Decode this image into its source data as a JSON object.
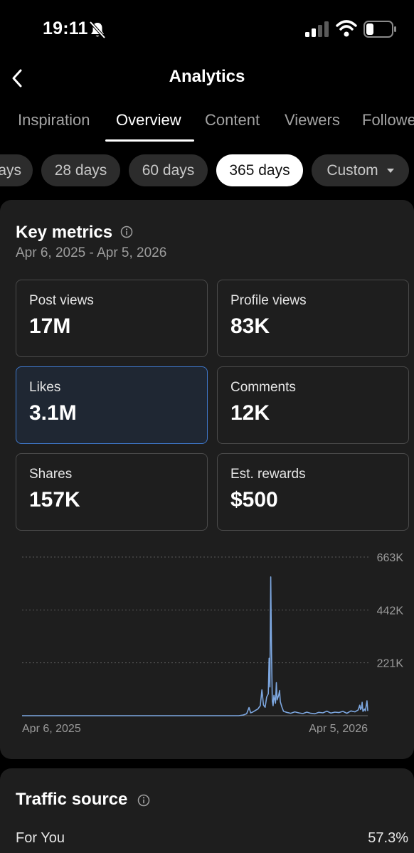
{
  "status_bar": {
    "time": "19:11"
  },
  "header": {
    "title": "Analytics"
  },
  "tabs": [
    "Inspiration",
    "Overview",
    "Content",
    "Viewers",
    "Followe"
  ],
  "chips": [
    "ays",
    "28 days",
    "60 days",
    "365 days",
    "Custom"
  ],
  "key_metrics": {
    "title": "Key metrics",
    "date_range": "Apr 6, 2025 - Apr 5, 2026",
    "metrics": [
      {
        "label": "Post views",
        "value": "17M"
      },
      {
        "label": "Profile views",
        "value": "83K"
      },
      {
        "label": "Likes",
        "value": "3.1M"
      },
      {
        "label": "Comments",
        "value": "12K"
      },
      {
        "label": "Shares",
        "value": "157K"
      },
      {
        "label": "Est. rewards",
        "value": "$500"
      }
    ]
  },
  "chart_data": {
    "type": "line",
    "x_start_label": "Apr 6, 2025",
    "x_end_label": "Apr 5, 2026",
    "y_ticks": [
      {
        "value": 221000,
        "label": "221K"
      },
      {
        "value": 442000,
        "label": "442K"
      },
      {
        "value": 663000,
        "label": "663K"
      }
    ],
    "ylim": [
      0,
      663000
    ],
    "grid": true,
    "color": "#7da7e0",
    "points": [
      [
        0,
        0
      ],
      [
        270,
        0
      ],
      [
        276,
        3000
      ],
      [
        280,
        8000
      ],
      [
        283,
        34000
      ],
      [
        285,
        12000
      ],
      [
        288,
        16000
      ],
      [
        291,
        22000
      ],
      [
        294,
        28000
      ],
      [
        297,
        42000
      ],
      [
        299,
        108000
      ],
      [
        301,
        45000
      ],
      [
        303,
        35000
      ],
      [
        305,
        78000
      ],
      [
        307,
        92000
      ],
      [
        308,
        240000
      ],
      [
        309,
        120000
      ],
      [
        310,
        580000
      ],
      [
        311,
        260000
      ],
      [
        312,
        62000
      ],
      [
        313,
        42000
      ],
      [
        314,
        85000
      ],
      [
        316,
        52000
      ],
      [
        317,
        138000
      ],
      [
        318,
        66000
      ],
      [
        320,
        86000
      ],
      [
        321,
        105000
      ],
      [
        322,
        58000
      ],
      [
        324,
        36000
      ],
      [
        326,
        18000
      ],
      [
        330,
        14000
      ],
      [
        335,
        10000
      ],
      [
        340,
        16000
      ],
      [
        345,
        12000
      ],
      [
        350,
        9000
      ],
      [
        355,
        15000
      ],
      [
        360,
        10000
      ],
      [
        365,
        8000
      ],
      [
        370,
        14000
      ],
      [
        375,
        12000
      ],
      [
        380,
        19000
      ],
      [
        385,
        11000
      ],
      [
        390,
        15000
      ],
      [
        395,
        13000
      ],
      [
        400,
        18000
      ],
      [
        405,
        10000
      ],
      [
        410,
        20000
      ],
      [
        415,
        16000
      ],
      [
        419,
        24000
      ],
      [
        421,
        44000
      ],
      [
        422,
        26000
      ],
      [
        423,
        31000
      ],
      [
        424,
        56000
      ],
      [
        425,
        18000
      ],
      [
        427,
        28000
      ],
      [
        428,
        20000
      ],
      [
        430,
        62000
      ],
      [
        431,
        20000
      ]
    ],
    "x_max": 431
  },
  "traffic_source": {
    "title": "Traffic source",
    "items": [
      {
        "label": "For You",
        "value": "57.3%"
      }
    ]
  },
  "colors": {
    "accent": "#3e76c8",
    "background": "#000000",
    "card": "#1e1e1e"
  }
}
